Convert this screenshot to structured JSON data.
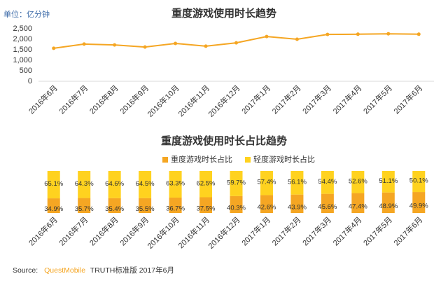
{
  "chart_data": [
    {
      "type": "line",
      "title": "重度游戏使用时长趋势",
      "unit_label": "单位：亿分钟",
      "categories": [
        "2016年6月",
        "2016年7月",
        "2016年8月",
        "2016年9月",
        "2016年10月",
        "2016年11月",
        "2016年12月",
        "2017年1月",
        "2017年2月",
        "2017年3月",
        "2017年4月",
        "2017年5月",
        "2017年6月"
      ],
      "values": [
        1570,
        1770,
        1730,
        1630,
        1800,
        1670,
        1830,
        2130,
        2000,
        2230,
        2240,
        2260,
        2240
      ],
      "color": "#f5a623",
      "ylim": [
        0,
        2500
      ],
      "yticks": [
        0,
        500,
        {
          "value": 1000,
          "label": "1,000"
        },
        {
          "value": 1500,
          "label": "1,500"
        },
        {
          "value": 2000,
          "label": "2,000"
        },
        {
          "value": 2500,
          "label": "2,500"
        }
      ]
    },
    {
      "type": "stacked_bar",
      "title": "重度游戏使用时长占比趋势",
      "categories": [
        "2016年6月",
        "2016年7月",
        "2016年8月",
        "2016年9月",
        "2016年10月",
        "2016年11月",
        "2016年12月",
        "2017年1月",
        "2017年2月",
        "2017年3月",
        "2017年4月",
        "2017年5月",
        "2017年6月"
      ],
      "series": [
        {
          "name": "重度游戏时长占比",
          "color": "#f5a623",
          "values": [
            34.9,
            35.7,
            35.4,
            35.5,
            36.7,
            37.5,
            40.3,
            42.6,
            43.9,
            45.6,
            47.4,
            48.9,
            49.9
          ],
          "value_labels": [
            "34.9%",
            "35.7%",
            "35.4%",
            "35.5%",
            "36.7%",
            "37.5%",
            "40.3%",
            "42.6%",
            "43.9%",
            "45.6%",
            "47.4%",
            "48.9%",
            "49.9%"
          ]
        },
        {
          "name": "轻度游戏时长占比",
          "color": "#ffd21f",
          "values": [
            65.1,
            64.3,
            64.6,
            64.5,
            63.3,
            62.5,
            59.7,
            57.4,
            56.1,
            54.4,
            52.6,
            51.1,
            50.1
          ],
          "value_labels": [
            "65.1%",
            "64.3%",
            "64.6%",
            "64.5%",
            "63.3%",
            "62.5%",
            "59.7%",
            "57.4%",
            "56.1%",
            "54.4%",
            "52.6%",
            "51.1%",
            "50.1%"
          ]
        }
      ]
    }
  ],
  "source": {
    "label": "Source:",
    "org": "QuestMobile",
    "text": "TRUTH标准版 2017年6月"
  }
}
